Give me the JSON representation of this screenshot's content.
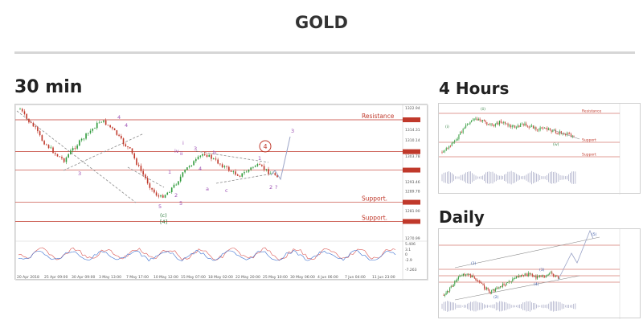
{
  "page": {
    "title": "GOLD"
  },
  "sections": {
    "min30": "30 min",
    "h4": "4 Hours",
    "daily": "Daily"
  },
  "colors": {
    "level_line": "#c0392b",
    "wave_label": "#9b4fb3",
    "up_candle": "#2e9a3a",
    "down_candle": "#c0392b",
    "channel": "#8a8a8a",
    "projection": "#9aa3c7",
    "osc_red": "#d9534f",
    "osc_blue": "#3a6fd0"
  },
  "chart_data": [
    {
      "name": "30 min",
      "type": "candlestick",
      "y_ticks": [
        "1322.94",
        "1318.18",
        "1314.31",
        "1310.14",
        "1305.46",
        "1303.78",
        "1298.10",
        "1293.46",
        "1289.78",
        "1285.26",
        "1281.90",
        "1277.58",
        "1270.99"
      ],
      "x_ticks": [
        "20 Apr 2018",
        "25 Apr 09:00",
        "30 Apr 09:00",
        "3 May 13:00",
        "7 May 17:00",
        "10 May 12:00",
        "15 May 07:00",
        "18 May 02:00",
        "22 May 20:00",
        "25 May 10:00",
        "30 May 06:00",
        "4 Jun 06:00",
        "7 Jun 04:00",
        "11 Jun 23:00"
      ],
      "levels": [
        {
          "label": "Resistance",
          "price": 1318.18
        },
        {
          "label": "",
          "price": 1305.46
        },
        {
          "label": "",
          "price": 1298.1
        },
        {
          "label": "Support.",
          "price": 1285.26
        },
        {
          "label": "Support.",
          "price": 1277.58
        }
      ],
      "close_path": [
        1322.5,
        1318,
        1315,
        1310,
        1307,
        1304,
        1302,
        1306,
        1309,
        1312,
        1315,
        1318,
        1316,
        1313,
        1309,
        1306,
        1300,
        1295,
        1290,
        1287,
        1289,
        1292,
        1296,
        1300,
        1302,
        1305,
        1303,
        1301,
        1299,
        1297,
        1296,
        1298,
        1300,
        1299,
        1297,
        1296
      ],
      "wave_labels": [
        "4",
        "3",
        "4",
        "i",
        "ii",
        "1",
        "2",
        "3",
        "4",
        "5",
        "iv",
        "b",
        "a",
        "c",
        "1",
        "2",
        "?",
        "3",
        "(c)",
        "[4]",
        "5"
      ],
      "circled_label": "4",
      "oscillator_ticks": [
        "5.406",
        "3.1",
        "0",
        "-2.9",
        "-7.263"
      ]
    },
    {
      "name": "4 Hours",
      "type": "candlestick",
      "labels": [
        "Resistance",
        "Support",
        "Support"
      ],
      "wave_labels": [
        "(i)",
        "(ii)",
        "(iv)"
      ]
    },
    {
      "name": "Daily",
      "type": "candlestick",
      "wave_labels": [
        "(1)",
        "(2)",
        "(3)",
        "(4)",
        "(5)"
      ]
    }
  ]
}
